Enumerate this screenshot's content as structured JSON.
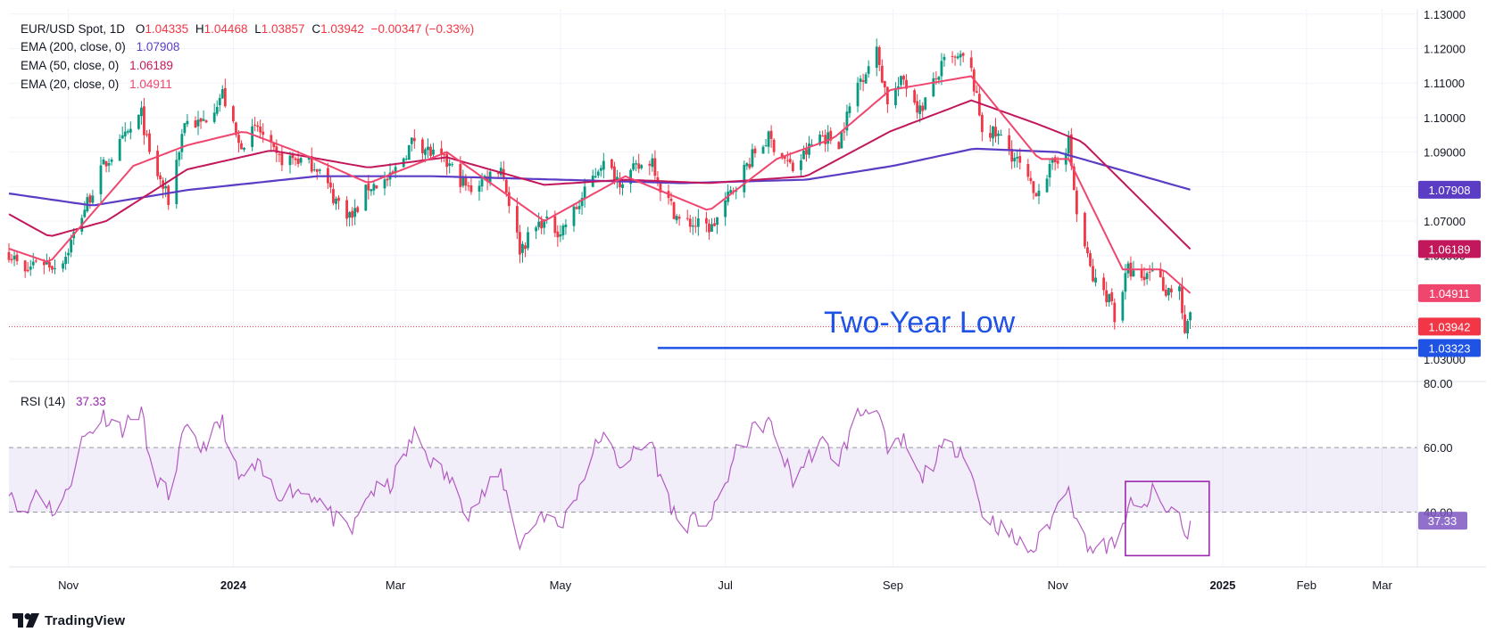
{
  "legend": {
    "symbol": "EUR/USD Spot, 1D",
    "o_label": "O",
    "o_value": "1.04335",
    "h_label": "H",
    "h_value": "1.04468",
    "l_label": "L",
    "l_value": "1.03857",
    "c_label": "C",
    "c_value": "1.03942",
    "change": "−0.00347 (−0.33%)",
    "ema200_label": "EMA (200, close, 0)",
    "ema200_value": "1.07908",
    "ema50_label": "EMA (50, close, 0)",
    "ema50_value": "1.06189",
    "ema20_label": "EMA (20, close, 0)",
    "ema20_value": "1.04911",
    "rsi_label": "RSI (14)",
    "rsi_value": "37.33"
  },
  "annotation": {
    "text": "Two-Year Low"
  },
  "branding": {
    "name": "TradingView"
  },
  "colors": {
    "up": "#089981",
    "down": "#f23645",
    "ema200": "#5b3cc4",
    "ema50": "#c2185b",
    "ema20": "#f0466e",
    "support": "#1e53e5",
    "rsi": "#9c27b0",
    "rsi_band": "#7e57c2"
  },
  "chart_data": [
    {
      "type": "candlestick",
      "title": "EUR/USD Spot, 1D",
      "ylim": [
        1.0235,
        1.1315
      ],
      "y_ticks": [
        "1.13000",
        "1.12000",
        "1.11000",
        "1.10000",
        "1.09000",
        "1.08000",
        "1.07000",
        "1.06000",
        "1.05000",
        "1.04000",
        "1.03000"
      ],
      "x_ticks": [
        "Nov",
        "2024",
        "Mar",
        "May",
        "Jul",
        "Sep",
        "Nov",
        "2025",
        "Feb",
        "Mar"
      ],
      "x_range": [
        "2023-10-10",
        "2025-03-14"
      ],
      "price_labels": [
        {
          "value": 1.07908,
          "text": "1.07908",
          "color": "#5b3cc4"
        },
        {
          "value": 1.06189,
          "text": "1.06189",
          "color": "#c2185b"
        },
        {
          "value": 1.04911,
          "text": "1.04911",
          "color": "#f0466e"
        },
        {
          "value": 1.03942,
          "text": "1.03942",
          "color": "#f23645"
        },
        {
          "value": 1.03323,
          "text": "1.03323",
          "color": "#1e53e5"
        }
      ],
      "last_close": 1.03942,
      "support_level": 1.03323,
      "support_start": "2024-06-06",
      "price_path": [
        [
          "2023-10-10",
          1.061
        ],
        [
          "2023-10-16",
          1.0545
        ],
        [
          "2023-10-20",
          1.059
        ],
        [
          "2023-10-27",
          1.057
        ],
        [
          "2023-10-31",
          1.06
        ],
        [
          "2023-11-06",
          1.072
        ],
        [
          "2023-11-14",
          1.086
        ],
        [
          "2023-11-21",
          1.093
        ],
        [
          "2023-11-28",
          1.101
        ],
        [
          "2023-12-01",
          1.089
        ],
        [
          "2023-12-08",
          1.076
        ],
        [
          "2023-12-14",
          1.099
        ],
        [
          "2023-12-20",
          1.098
        ],
        [
          "2023-12-28",
          1.107
        ],
        [
          "2024-01-03",
          1.092
        ],
        [
          "2024-01-10",
          1.097
        ],
        [
          "2024-01-17",
          1.088
        ],
        [
          "2024-01-24",
          1.088
        ],
        [
          "2024-02-01",
          1.086
        ],
        [
          "2024-02-07",
          1.077
        ],
        [
          "2024-02-14",
          1.071
        ],
        [
          "2024-02-20",
          1.08
        ],
        [
          "2024-02-28",
          1.082
        ],
        [
          "2024-03-08",
          1.094
        ],
        [
          "2024-03-15",
          1.089
        ],
        [
          "2024-03-21",
          1.086
        ],
        [
          "2024-03-28",
          1.079
        ],
        [
          "2024-04-09",
          1.086
        ],
        [
          "2024-04-16",
          1.062
        ],
        [
          "2024-04-24",
          1.07
        ],
        [
          "2024-05-01",
          1.067
        ],
        [
          "2024-05-08",
          1.075
        ],
        [
          "2024-05-16",
          1.087
        ],
        [
          "2024-05-23",
          1.082
        ],
        [
          "2024-06-04",
          1.088
        ],
        [
          "2024-06-07",
          1.08
        ],
        [
          "2024-06-14",
          1.07
        ],
        [
          "2024-06-26",
          1.068
        ],
        [
          "2024-07-05",
          1.081
        ],
        [
          "2024-07-12",
          1.09
        ],
        [
          "2024-07-17",
          1.094
        ],
        [
          "2024-07-26",
          1.085
        ],
        [
          "2024-08-05",
          1.095
        ],
        [
          "2024-08-12",
          1.093
        ],
        [
          "2024-08-19",
          1.11
        ],
        [
          "2024-08-26",
          1.119
        ],
        [
          "2024-08-30",
          1.105
        ],
        [
          "2024-09-05",
          1.111
        ],
        [
          "2024-09-11",
          1.102
        ],
        [
          "2024-09-20",
          1.116
        ],
        [
          "2024-09-27",
          1.117
        ],
        [
          "2024-09-30",
          1.113
        ],
        [
          "2024-10-04",
          1.097
        ],
        [
          "2024-10-11",
          1.094
        ],
        [
          "2024-10-18",
          1.086
        ],
        [
          "2024-10-23",
          1.078
        ],
        [
          "2024-10-31",
          1.087
        ],
        [
          "2024-11-05",
          1.093
        ],
        [
          "2024-11-08",
          1.072
        ],
        [
          "2024-11-14",
          1.053
        ],
        [
          "2024-11-21",
          1.047
        ],
        [
          "2024-11-22",
          1.042
        ],
        [
          "2024-11-27",
          1.056
        ],
        [
          "2024-12-02",
          1.052
        ],
        [
          "2024-12-06",
          1.057
        ],
        [
          "2024-12-11",
          1.05
        ],
        [
          "2024-12-16",
          1.051
        ],
        [
          "2024-12-18",
          1.036
        ],
        [
          "2024-12-20",
          1.0434
        ]
      ],
      "ema200": [
        [
          "2023-10-10",
          1.078
        ],
        [
          "2023-11-10",
          1.0745
        ],
        [
          "2023-12-15",
          1.079
        ],
        [
          "2024-02-01",
          1.083
        ],
        [
          "2024-03-15",
          1.083
        ],
        [
          "2024-05-01",
          1.082
        ],
        [
          "2024-06-15",
          1.081
        ],
        [
          "2024-07-31",
          1.082
        ],
        [
          "2024-09-01",
          1.086
        ],
        [
          "2024-10-01",
          1.091
        ],
        [
          "2024-11-01",
          1.09
        ],
        [
          "2024-12-20",
          1.0791
        ]
      ],
      "ema50": [
        [
          "2023-10-10",
          1.072
        ],
        [
          "2023-10-25",
          1.0655
        ],
        [
          "2023-11-15",
          1.07
        ],
        [
          "2023-12-15",
          1.085
        ],
        [
          "2024-01-15",
          1.0905
        ],
        [
          "2024-02-20",
          1.0855
        ],
        [
          "2024-03-20",
          1.0885
        ],
        [
          "2024-04-25",
          1.0805
        ],
        [
          "2024-05-25",
          1.082
        ],
        [
          "2024-06-25",
          1.081
        ],
        [
          "2024-07-31",
          1.083
        ],
        [
          "2024-08-31",
          1.096
        ],
        [
          "2024-09-30",
          1.105
        ],
        [
          "2024-10-25",
          1.098
        ],
        [
          "2024-11-10",
          1.093
        ],
        [
          "2024-12-20",
          1.0619
        ]
      ],
      "ema20": [
        [
          "2023-10-10",
          1.062
        ],
        [
          "2023-10-25",
          1.058
        ],
        [
          "2023-11-25",
          1.086
        ],
        [
          "2023-12-15",
          1.092
        ],
        [
          "2024-01-05",
          1.096
        ],
        [
          "2024-01-25",
          1.09
        ],
        [
          "2024-02-20",
          1.081
        ],
        [
          "2024-03-20",
          1.09
        ],
        [
          "2024-04-25",
          1.07
        ],
        [
          "2024-05-25",
          1.083
        ],
        [
          "2024-06-25",
          1.073
        ],
        [
          "2024-07-20",
          1.088
        ],
        [
          "2024-08-10",
          1.094
        ],
        [
          "2024-08-31",
          1.108
        ],
        [
          "2024-09-30",
          1.112
        ],
        [
          "2024-10-25",
          1.088
        ],
        [
          "2024-11-05",
          1.088
        ],
        [
          "2024-11-25",
          1.056
        ],
        [
          "2024-12-10",
          1.056
        ],
        [
          "2024-12-20",
          1.0491
        ]
      ]
    },
    {
      "type": "line",
      "title": "RSI (14)",
      "ylim": [
        23,
        80.5
      ],
      "y_ticks": [
        "80.00",
        "60.00",
        "40.00"
      ],
      "band": [
        40,
        60
      ],
      "last_value": 37.33,
      "series": [
        {
          "name": "RSI (14)",
          "values": [
            [
              "2023-10-10",
              48
            ],
            [
              "2023-10-16",
              38
            ],
            [
              "2023-10-20",
              47
            ],
            [
              "2023-10-27",
              40
            ],
            [
              "2023-10-31",
              45
            ],
            [
              "2023-11-06",
              62
            ],
            [
              "2023-11-14",
              70
            ],
            [
              "2023-11-21",
              66
            ],
            [
              "2023-11-28",
              72
            ],
            [
              "2023-12-01",
              55
            ],
            [
              "2023-12-08",
              45
            ],
            [
              "2023-12-14",
              65
            ],
            [
              "2023-12-20",
              60
            ],
            [
              "2023-12-28",
              68
            ],
            [
              "2024-01-03",
              50
            ],
            [
              "2024-01-10",
              54
            ],
            [
              "2024-01-17",
              46
            ],
            [
              "2024-01-24",
              47
            ],
            [
              "2024-02-01",
              45
            ],
            [
              "2024-02-07",
              38
            ],
            [
              "2024-02-14",
              34
            ],
            [
              "2024-02-20",
              46
            ],
            [
              "2024-02-28",
              48
            ],
            [
              "2024-03-08",
              64
            ],
            [
              "2024-03-15",
              55
            ],
            [
              "2024-03-21",
              50
            ],
            [
              "2024-03-28",
              40
            ],
            [
              "2024-04-09",
              52
            ],
            [
              "2024-04-16",
              30
            ],
            [
              "2024-04-24",
              40
            ],
            [
              "2024-05-01",
              35
            ],
            [
              "2024-05-08",
              48
            ],
            [
              "2024-05-16",
              64
            ],
            [
              "2024-05-23",
              55
            ],
            [
              "2024-06-04",
              62
            ],
            [
              "2024-06-07",
              50
            ],
            [
              "2024-06-14",
              36
            ],
            [
              "2024-06-26",
              38
            ],
            [
              "2024-07-05",
              58
            ],
            [
              "2024-07-12",
              66
            ],
            [
              "2024-07-17",
              68
            ],
            [
              "2024-07-26",
              50
            ],
            [
              "2024-08-05",
              62
            ],
            [
              "2024-08-12",
              56
            ],
            [
              "2024-08-19",
              70
            ],
            [
              "2024-08-26",
              74
            ],
            [
              "2024-08-30",
              58
            ],
            [
              "2024-09-05",
              62
            ],
            [
              "2024-09-11",
              50
            ],
            [
              "2024-09-20",
              60
            ],
            [
              "2024-09-27",
              60
            ],
            [
              "2024-09-30",
              52
            ],
            [
              "2024-10-04",
              40
            ],
            [
              "2024-10-11",
              35
            ],
            [
              "2024-10-18",
              30
            ],
            [
              "2024-10-23",
              28
            ],
            [
              "2024-10-31",
              40
            ],
            [
              "2024-11-05",
              50
            ],
            [
              "2024-11-08",
              36
            ],
            [
              "2024-11-14",
              28
            ],
            [
              "2024-11-21",
              30
            ],
            [
              "2024-11-22",
              27
            ],
            [
              "2024-11-27",
              42
            ],
            [
              "2024-12-02",
              40
            ],
            [
              "2024-12-06",
              46
            ],
            [
              "2024-12-11",
              40
            ],
            [
              "2024-12-16",
              41
            ],
            [
              "2024-12-18",
              31
            ],
            [
              "2024-12-20",
              37.33
            ]
          ]
        }
      ],
      "highlight_box": {
        "x_range": [
          "2024-11-26",
          "2024-12-27"
        ],
        "y_range": [
          26.5,
          49.5
        ]
      }
    }
  ]
}
